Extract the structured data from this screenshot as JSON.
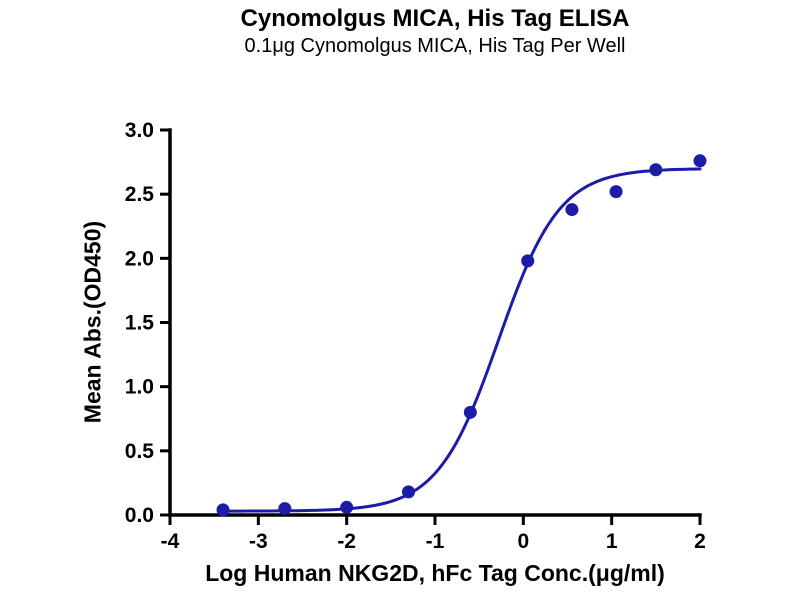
{
  "chart_data": {
    "type": "scatter",
    "title": "Cynomolgus MICA, His Tag ELISA",
    "subtitle": "0.1μg Cynomolgus MICA, His Tag Per Well",
    "xlabel": "Log Human NKG2D, hFc Tag Conc.(μg/ml)",
    "ylabel": "Mean Abs.(OD450)",
    "xlim": [
      -4,
      2
    ],
    "ylim": [
      0.0,
      3.0
    ],
    "x_ticks": [
      "-4",
      "-3",
      "-2",
      "-1",
      "0",
      "1",
      "2"
    ],
    "x_tick_values": [
      -4,
      -3,
      -2,
      -1,
      0,
      1,
      2
    ],
    "y_ticks": [
      "0.0",
      "0.5",
      "1.0",
      "1.5",
      "2.0",
      "2.5",
      "3.0"
    ],
    "y_tick_values": [
      0,
      0.5,
      1,
      1.5,
      2,
      2.5,
      3
    ],
    "points": [
      {
        "x": -3.4,
        "y": 0.04
      },
      {
        "x": -2.7,
        "y": 0.05
      },
      {
        "x": -2.0,
        "y": 0.06
      },
      {
        "x": -1.3,
        "y": 0.18
      },
      {
        "x": -0.6,
        "y": 0.8
      },
      {
        "x": 0.05,
        "y": 1.98
      },
      {
        "x": 0.55,
        "y": 2.38
      },
      {
        "x": 1.05,
        "y": 2.52
      },
      {
        "x": 1.5,
        "y": 2.69
      },
      {
        "x": 2.0,
        "y": 2.76
      }
    ],
    "fit_curve": {
      "model": "4PL",
      "bottom": 0.03,
      "top": 2.7,
      "logEC50": -0.28,
      "hillslope": 1.26,
      "x_start": -3.4,
      "x_end": 2.0
    },
    "colors": {
      "curve": "#1c1ca8",
      "points": "#1c1ca8",
      "axis": "#000000"
    },
    "grid": false,
    "legend": "none"
  }
}
